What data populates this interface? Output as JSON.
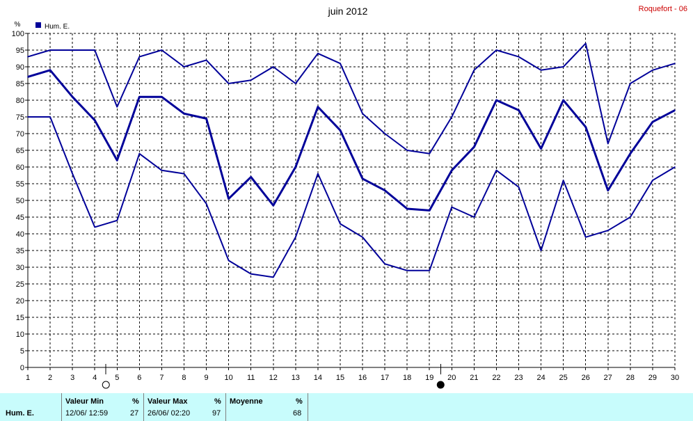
{
  "title": "juin 2012",
  "station": "Roquefort - 06",
  "unit": "%",
  "legend": {
    "label": "Hum. E.",
    "color": "#000099"
  },
  "moon_markers": [
    {
      "after_day": 4,
      "icon": "full-moon-icon"
    },
    {
      "after_day": 19,
      "icon": "new-moon-icon"
    }
  ],
  "chart_data": {
    "type": "line",
    "title": "juin 2012",
    "ylabel": "%",
    "ylim": [
      0,
      100
    ],
    "ytick_step": 5,
    "x": [
      1,
      2,
      3,
      4,
      5,
      6,
      7,
      8,
      9,
      10,
      11,
      12,
      13,
      14,
      15,
      16,
      17,
      18,
      19,
      20,
      21,
      22,
      23,
      24,
      25,
      26,
      27,
      28,
      29,
      30
    ],
    "grid": true,
    "legend_position": "top-left",
    "series": [
      {
        "name": "Hum. E.",
        "role": "max",
        "color": "#000099",
        "values": [
          93,
          95,
          95,
          95,
          78,
          93,
          95,
          90,
          92,
          85,
          86,
          90,
          85,
          94,
          91,
          76,
          70,
          65,
          64,
          75,
          89,
          95,
          93,
          89,
          90,
          97,
          67,
          85,
          89,
          91
        ]
      },
      {
        "name": "Hum. E.",
        "role": "mean",
        "color": "#000099",
        "values": [
          87,
          89,
          81,
          74,
          62,
          81,
          81,
          76,
          74.5,
          50.5,
          57,
          48.5,
          60,
          78,
          71,
          56.5,
          53,
          47.5,
          47,
          59,
          66,
          80,
          77,
          65.5,
          80,
          72,
          53,
          64,
          73.5,
          77
        ]
      },
      {
        "name": "Hum. E.",
        "role": "min",
        "color": "#000099",
        "values": [
          75,
          75,
          58,
          42,
          44,
          64,
          59,
          58,
          49,
          32,
          28,
          27,
          39,
          58,
          43,
          39,
          31,
          29,
          29,
          48,
          45,
          59,
          54,
          35,
          56,
          39,
          41,
          45,
          56,
          60
        ]
      }
    ]
  },
  "footer": {
    "variable": "Hum. E.",
    "min": {
      "header": "Valeur Min",
      "unit": "%",
      "date": "12/06/  12:59",
      "value": "27"
    },
    "max": {
      "header": "Valeur Max",
      "unit": "%",
      "date": "26/06/  02:20",
      "value": "97"
    },
    "avg": {
      "header": "Moyenne",
      "unit": "%",
      "value": "68"
    }
  }
}
